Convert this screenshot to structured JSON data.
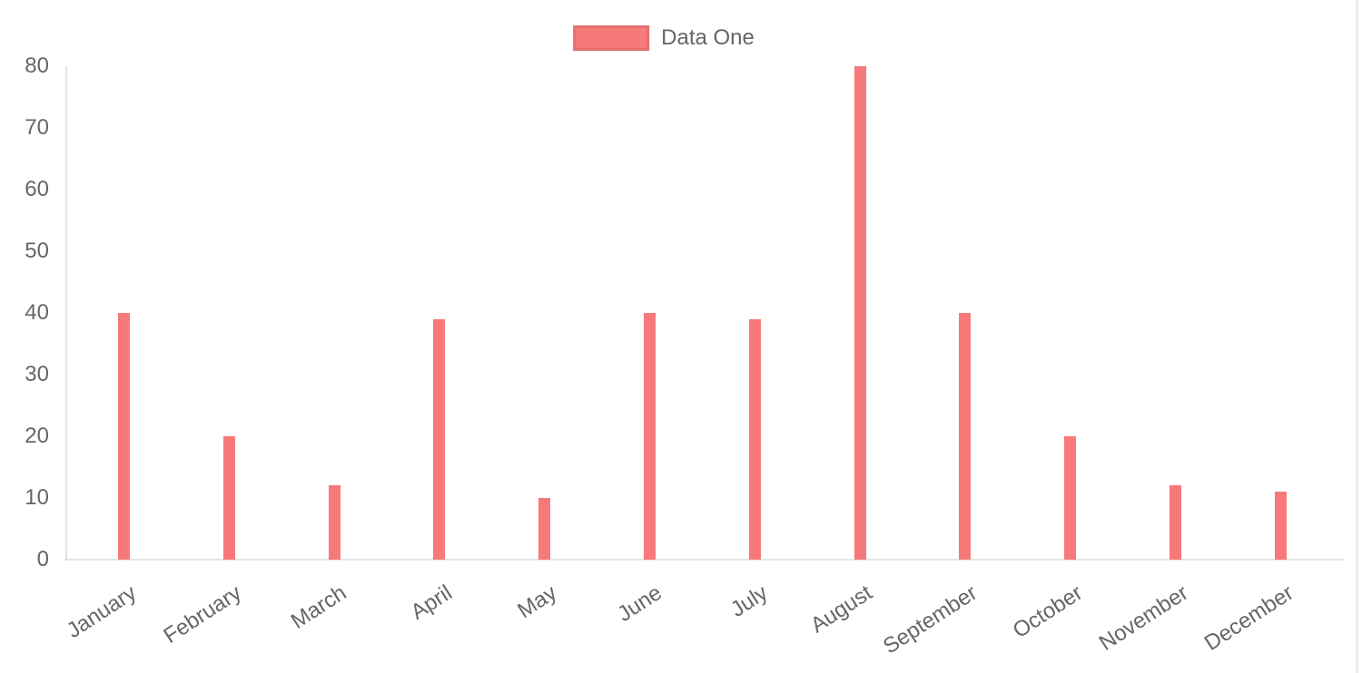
{
  "chart_data": {
    "type": "bar",
    "title": "",
    "xlabel": "",
    "ylabel": "",
    "categories": [
      "January",
      "February",
      "March",
      "April",
      "May",
      "June",
      "July",
      "August",
      "September",
      "October",
      "November",
      "December"
    ],
    "series": [
      {
        "name": "Data One",
        "color": "#f87979",
        "values": [
          40,
          20,
          12,
          39,
          10,
          40,
          39,
          80,
          40,
          20,
          12,
          11
        ]
      }
    ],
    "ylim": [
      0,
      80
    ],
    "yticks": [
      0,
      10,
      20,
      30,
      40,
      50,
      60,
      70,
      80
    ],
    "grid": false,
    "legend_position": "top-center",
    "x_tick_rotation_deg": -33,
    "axis_line_color": "rgba(0,0,0,0.1)",
    "tick_text_color": "#666666",
    "background_color": "#ffffff"
  }
}
